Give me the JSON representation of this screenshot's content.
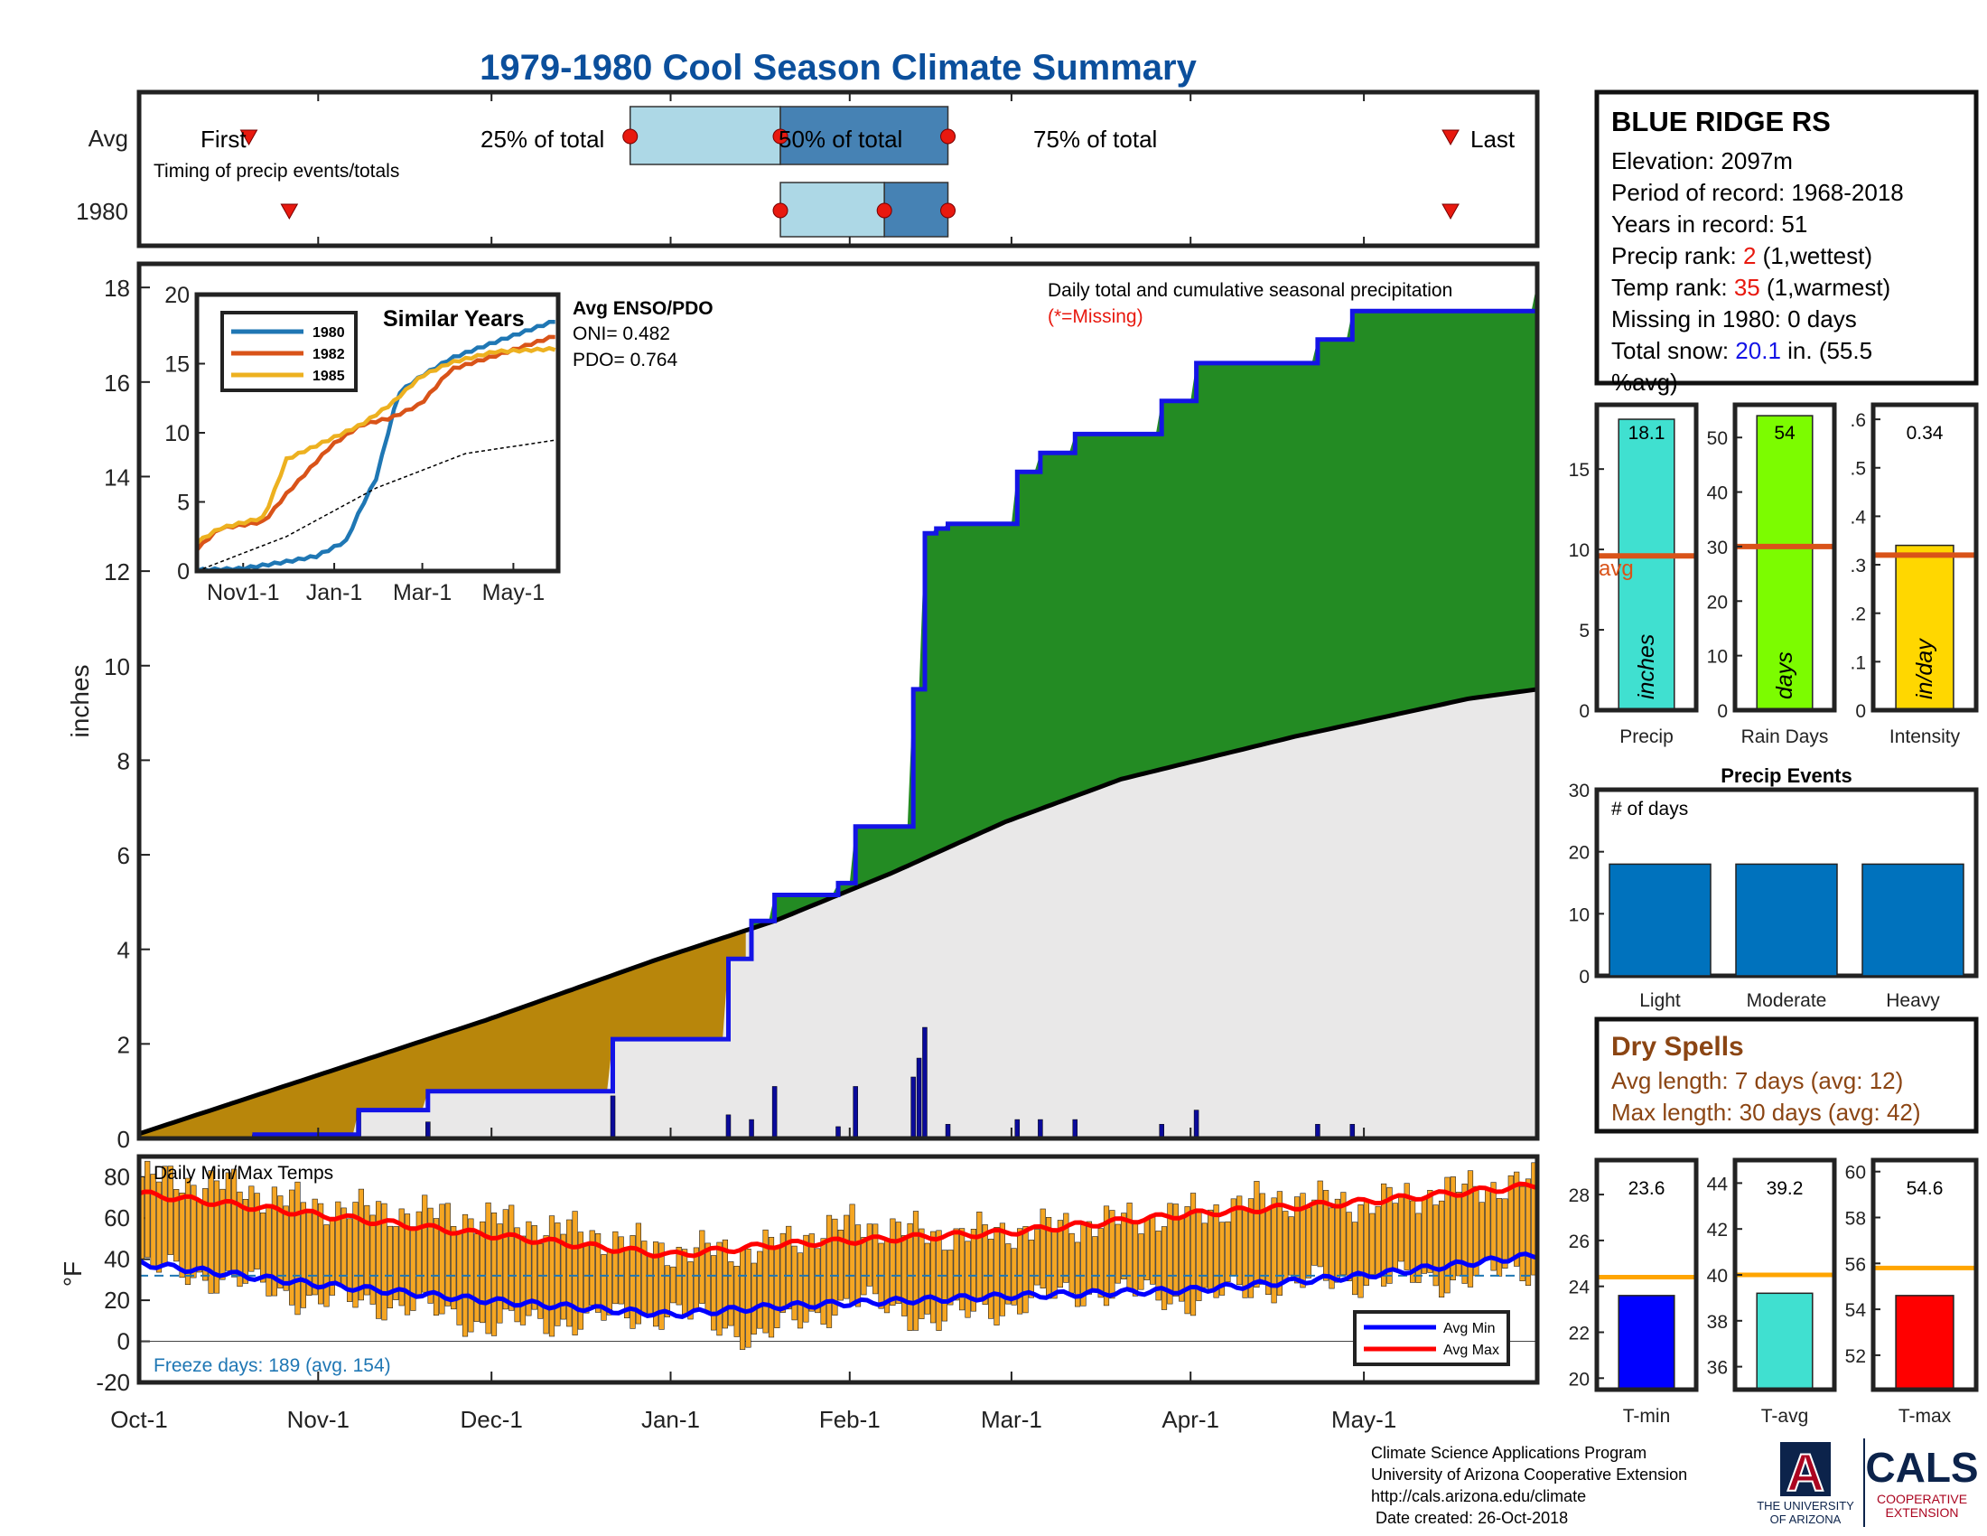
{
  "title": "1979-1980 Cool Season Climate Summary",
  "timing": {
    "row_labels": [
      "Avg",
      "1980"
    ],
    "first_label": "First",
    "last_label": "Last",
    "caption": "Timing of precip events/totals",
    "q25_label": "25% of total",
    "q50_label": "50% of total",
    "q75_label": "75% of total",
    "avg": {
      "first": 19,
      "q25": 85,
      "q50": 111,
      "q75": 140,
      "last": 227
    },
    "y1980": {
      "first": 26,
      "q25": 111,
      "q50": 129,
      "q75": 140,
      "last": 227
    }
  },
  "station": {
    "name": "BLUE RIDGE RS",
    "elevation": "Elevation: 2097m",
    "period": "Period of record: 1968-2018",
    "years": "Years in record: 51",
    "precip_rank_prefix": "Precip rank: ",
    "precip_rank_value": "2",
    "precip_rank_suffix": " (1,wettest)",
    "temp_rank_prefix": "Temp rank: ",
    "temp_rank_value": "35",
    "temp_rank_suffix": " (1,warmest)",
    "missing": "Missing in 1980: 0 days",
    "snow_prefix": "Total snow: ",
    "snow_value": "20.1",
    "snow_suffix": " in. (55.5",
    "snow_line2": "%avg)"
  },
  "colors": {
    "title": "#0b4f9c",
    "obs_line": "#1414e6",
    "above_fill": "#238b23",
    "below_fill": "#b8860b",
    "avg_fill": "#e9e8e8",
    "rank_red": "#e8190f",
    "snow_blue": "#1414e6",
    "tmax_bar": "#f5a623",
    "dryspell": "#8b4513",
    "freeze_text": "#1f77b4"
  },
  "chart_data": [
    {
      "type": "area",
      "name": "cumulative precipitation",
      "ylabel": "inches",
      "ylim": [
        0,
        18.5
      ],
      "yticks": [
        0,
        2,
        4,
        6,
        8,
        10,
        12,
        14,
        16,
        18
      ],
      "x_tick_labels": [
        "Oct-1",
        "Nov-1",
        "Dec-1",
        "Jan-1",
        "Feb-1",
        "Mar-1",
        "Apr-1",
        "May-1"
      ],
      "x_tick_days": [
        0,
        31,
        61,
        92,
        123,
        151,
        182,
        212
      ],
      "x_range_days": [
        0,
        242
      ],
      "annotation": "Daily total and cumulative seasonal precipitation",
      "missing_note": "(*=Missing)",
      "avg_cumulative": {
        "day": [
          0,
          10,
          30,
          60,
          90,
          110,
          130,
          150,
          170,
          200,
          230,
          242
        ],
        "inches": [
          0.1,
          0.5,
          1.3,
          2.5,
          3.8,
          4.6,
          5.6,
          6.7,
          7.6,
          8.5,
          9.3,
          9.5
        ]
      },
      "observed_cumulative_steps": {
        "day": [
          0,
          20,
          38,
          50,
          82,
          102,
          106,
          110,
          121,
          124,
          134,
          136,
          138,
          140,
          152,
          156,
          162,
          177,
          183,
          204,
          210,
          242
        ],
        "inches": [
          0,
          0.08,
          0.6,
          1.0,
          2.1,
          3.8,
          4.6,
          5.15,
          5.4,
          6.6,
          9.5,
          12.8,
          12.9,
          13.0,
          14.1,
          14.5,
          14.9,
          15.6,
          16.4,
          16.9,
          17.5,
          18.1
        ]
      },
      "daily_precip": {
        "day": [
          20,
          38,
          50,
          82,
          102,
          106,
          110,
          121,
          124,
          134,
          135,
          136,
          140,
          152,
          156,
          162,
          177,
          183,
          204,
          210
        ],
        "inches": [
          0.08,
          0.6,
          0.35,
          0.9,
          0.5,
          0.4,
          1.1,
          0.25,
          1.1,
          1.3,
          1.7,
          2.35,
          0.3,
          0.4,
          0.4,
          0.4,
          0.3,
          0.6,
          0.3,
          0.3
        ]
      }
    },
    {
      "type": "line",
      "title": "Similar Years",
      "x_tick_labels": [
        "Nov1-1",
        "Jan-1",
        "Mar-1",
        "May-1"
      ],
      "x_tick_days": [
        31,
        92,
        151,
        212
      ],
      "ylim": [
        0,
        20
      ],
      "yticks": [
        0,
        5,
        10,
        15,
        20
      ],
      "series": [
        {
          "name": "1980",
          "color": "#1f77b4",
          "day": [
            0,
            30,
            60,
            80,
            100,
            110,
            120,
            135,
            150,
            170,
            200,
            242
          ],
          "values": [
            0,
            0.1,
            0.6,
            1.0,
            2.1,
            4.5,
            6.6,
            12.8,
            14.0,
            15.3,
            16.5,
            18.1
          ]
        },
        {
          "name": "1982",
          "color": "#d95319",
          "day": [
            0,
            15,
            45,
            60,
            90,
            110,
            130,
            150,
            170,
            200,
            242
          ],
          "values": [
            1.5,
            3.0,
            3.5,
            5.5,
            9.0,
            10.5,
            11.0,
            12.0,
            14.5,
            15.5,
            17.0
          ]
        },
        {
          "name": "1985",
          "color": "#edb120",
          "day": [
            0,
            15,
            45,
            60,
            90,
            110,
            130,
            150,
            170,
            200,
            242
          ],
          "values": [
            2.0,
            3.0,
            3.8,
            8.0,
            9.5,
            10.5,
            12.0,
            14.0,
            15.0,
            15.8,
            16.0
          ]
        },
        {
          "name": "avg",
          "color": "#000000",
          "day": [
            0,
            60,
            120,
            180,
            242
          ],
          "values": [
            0,
            2.5,
            6.0,
            8.5,
            9.5
          ]
        }
      ]
    },
    {
      "type": "bar",
      "categories": [
        "Precip",
        "Rain Days",
        "Intensity"
      ],
      "values": [
        18.1,
        54,
        0.34
      ],
      "avg_values": [
        9.6,
        30,
        0.32
      ],
      "ylims": [
        [
          0,
          19
        ],
        [
          0,
          56
        ],
        [
          0,
          0.63
        ]
      ],
      "yticks": [
        [
          0,
          5,
          10,
          15
        ],
        [
          0,
          10,
          20,
          30,
          40,
          50
        ],
        [
          0,
          0.1,
          0.2,
          0.3,
          0.4,
          0.5,
          0.6
        ]
      ],
      "value_labels": [
        "18.1",
        "54",
        "0.34"
      ],
      "units": [
        "inches",
        "days",
        "in/day"
      ],
      "avg_label": "avg",
      "colors": [
        "#40e0d0",
        "#7cfc00",
        "#ffd700"
      ]
    },
    {
      "type": "bar",
      "title": "Precip Events",
      "ylabel": "# of days",
      "categories": [
        "Light",
        "Moderate",
        "Heavy"
      ],
      "values": [
        18,
        18,
        18
      ],
      "ylim": [
        0,
        30
      ],
      "yticks": [
        0,
        10,
        20,
        30
      ]
    },
    {
      "type": "bar",
      "name": "daily temperature range",
      "ylabel": "°F",
      "ylim": [
        -20,
        90
      ],
      "yticks": [
        -20,
        0,
        20,
        40,
        60,
        80
      ],
      "label": "Daily Min/Max Temps",
      "freeze_days": "Freeze days: 189 (avg. 154)",
      "freeze_line": 32,
      "legend": [
        "Avg Min",
        "Avg Max"
      ],
      "avg_max": {
        "day": [
          0,
          30,
          60,
          92,
          110,
          150,
          182,
          212,
          242
        ],
        "values": [
          72,
          62,
          52,
          42,
          47,
          53,
          62,
          68,
          76
        ]
      },
      "avg_min": {
        "day": [
          0,
          30,
          60,
          92,
          110,
          150,
          182,
          212,
          242
        ],
        "values": [
          38,
          28,
          20,
          13,
          17,
          22,
          25,
          32,
          42
        ]
      },
      "daily_max": {
        "day": [
          0,
          15,
          30,
          45,
          60,
          75,
          92,
          107,
          123,
          138,
          151,
          166,
          182,
          197,
          212,
          227,
          242
        ],
        "values": [
          80,
          76,
          66,
          63,
          60,
          54,
          44,
          45,
          58,
          52,
          54,
          58,
          63,
          70,
          67,
          74,
          78
        ]
      },
      "daily_min": {
        "day": [
          0,
          15,
          30,
          45,
          60,
          75,
          92,
          107,
          123,
          138,
          151,
          166,
          182,
          197,
          212,
          227,
          242
        ],
        "values": [
          36,
          30,
          20,
          18,
          8,
          10,
          14,
          2,
          20,
          10,
          18,
          25,
          20,
          28,
          30,
          30,
          36
        ]
      }
    },
    {
      "type": "bar",
      "categories": [
        "T-min",
        "T-avg",
        "T-max"
      ],
      "values": [
        23.6,
        39.2,
        54.6
      ],
      "avg_values": [
        24.4,
        40.0,
        55.8
      ],
      "ylims": [
        [
          19.5,
          29.5
        ],
        [
          35,
          45
        ],
        [
          50.5,
          60.5
        ]
      ],
      "yticks": [
        [
          20,
          22,
          24,
          26,
          28
        ],
        [
          36,
          38,
          40,
          42,
          44
        ],
        [
          52,
          54,
          56,
          58,
          60
        ]
      ],
      "value_labels": [
        "23.6",
        "39.2",
        "54.6"
      ],
      "colors": [
        "#0000ff",
        "#40e0d0",
        "#ff0000"
      ]
    }
  ],
  "dry_spells": {
    "title": "Dry Spells",
    "avg_length": "Avg length: 7 days (avg: 12)",
    "max_length": "Max length: 30 days (avg: 42)"
  },
  "footer": {
    "lines": [
      "Climate Science Applications Program",
      "University of Arizona Cooperative Extension",
      "http://cals.arizona.edu/climate",
      " Date created: 26-Oct-2018"
    ],
    "ua_logo_letter": "A",
    "ua_line1": "THE UNIVERSITY",
    "ua_line2": "OF ARIZONA",
    "cals": "CALS",
    "cals_line1": "COOPERATIVE",
    "cals_line2": "EXTENSION"
  }
}
